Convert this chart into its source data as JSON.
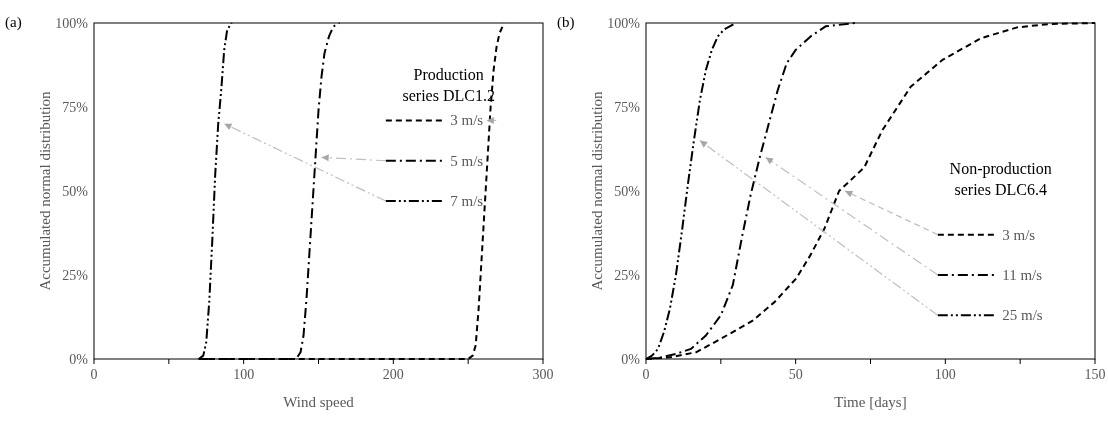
{
  "chart_data": [
    {
      "type": "line",
      "annotations": [
        "(a)"
      ],
      "xlabel": "Wind speed",
      "ylabel": "Accumulated normal distribution",
      "legend_title": "Production series DLC1.2",
      "legend": "top right",
      "xlim": [
        0,
        300
      ],
      "xticks": [
        0,
        {
          "value": 50,
          "label": null
        },
        100,
        {
          "value": 150,
          "label": null
        },
        200,
        {
          "value": 250,
          "label": null
        },
        300
      ],
      "ylim": [
        0,
        100
      ],
      "yticks": [
        {
          "value": 0,
          "label": "0%"
        },
        {
          "value": 25,
          "label": "25%"
        },
        {
          "value": 50,
          "label": "50%"
        },
        {
          "value": 75,
          "label": "75%"
        },
        {
          "value": 100,
          "label": "100%"
        }
      ],
      "grid": false,
      "series": [
        {
          "name": "3 m/s",
          "color": "#000000",
          "line_style": "dashed",
          "x": [
            70,
            250,
            253,
            255,
            257,
            259,
            261,
            263,
            265,
            267,
            269,
            271,
            274
          ],
          "values": [
            0,
            0,
            1,
            4,
            15,
            30,
            45,
            60,
            75,
            86,
            93,
            97,
            100
          ]
        },
        {
          "name": "5 m/s",
          "color": "#000000",
          "line_style": "dashdot",
          "x": [
            70,
            135,
            138,
            140,
            142,
            144,
            146,
            148,
            150,
            152,
            154,
            157,
            160,
            164
          ],
          "values": [
            0,
            0,
            2,
            7,
            18,
            32,
            46,
            60,
            74,
            84,
            91,
            96,
            99,
            100
          ]
        },
        {
          "name": "7 m/s",
          "color": "#000000",
          "line_style": "dashdotdot",
          "x": [
            70,
            73,
            75,
            77,
            79,
            81,
            83,
            85,
            87,
            89,
            92
          ],
          "values": [
            0,
            1,
            5,
            17,
            35,
            55,
            70,
            80,
            92,
            98,
            100
          ]
        }
      ]
    },
    {
      "type": "line",
      "annotations": [
        "(b)"
      ],
      "xlabel": "Time [days]",
      "ylabel": "Accumulated normal distribution",
      "legend_title": "Non-production series DLC6.4",
      "legend": "bottom right",
      "xlim": [
        0,
        150
      ],
      "xticks": [
        0,
        {
          "value": 25,
          "label": null
        },
        50,
        {
          "value": 75,
          "label": null
        },
        100,
        {
          "value": 125,
          "label": null
        },
        150
      ],
      "ylim": [
        0,
        100
      ],
      "yticks": [
        {
          "value": 0,
          "label": "0%"
        },
        {
          "value": 25,
          "label": "25%"
        },
        {
          "value": 50,
          "label": "50%"
        },
        {
          "value": 75,
          "label": "75%"
        },
        {
          "value": 100,
          "label": "100%"
        }
      ],
      "grid": false,
      "series": [
        {
          "name": "3 m/s",
          "color": "#000000",
          "line_style": "dashed",
          "x": [
            0,
            8,
            16.7,
            25,
            35.8,
            43,
            50.2,
            55,
            59.7,
            64.5,
            72.9,
            78.9,
            88.4,
            99,
            112,
            124,
            135,
            150
          ],
          "values": [
            0,
            0.5,
            2,
            6,
            11.5,
            17,
            24,
            31,
            39,
            50,
            57,
            68,
            81,
            89,
            95.5,
            98.7,
            99.7,
            100
          ]
        },
        {
          "name": "11 m/s",
          "color": "#000000",
          "line_style": "dashdot",
          "x": [
            0,
            5,
            10,
            15,
            20,
            25,
            29,
            32,
            35,
            38,
            41,
            44,
            47,
            50,
            55,
            60,
            70
          ],
          "values": [
            0,
            0.5,
            1.5,
            3,
            7,
            13,
            22,
            36,
            49,
            60,
            70,
            80,
            88,
            92,
            96,
            99,
            100
          ]
        },
        {
          "name": "25 m/s",
          "color": "#000000",
          "line_style": "dashdotdot",
          "x": [
            0,
            2,
            4,
            6,
            8,
            10,
            12,
            14,
            16,
            18,
            20,
            22,
            24,
            26,
            30
          ],
          "values": [
            0,
            1,
            3,
            8,
            15,
            25,
            38,
            52,
            65,
            77,
            86,
            92,
            96,
            98,
            100
          ]
        }
      ]
    }
  ]
}
